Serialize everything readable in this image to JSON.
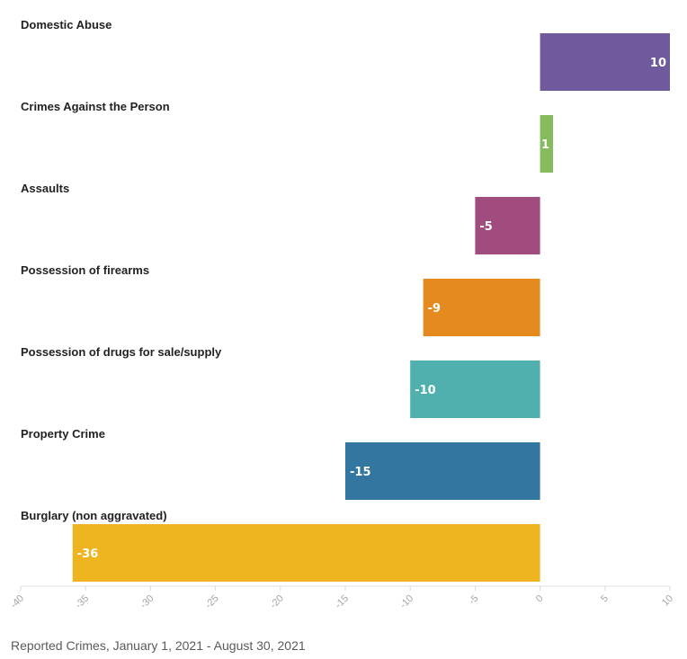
{
  "chart_data": {
    "type": "bar",
    "orientation": "horizontal",
    "categories": [
      "Domestic Abuse",
      "Crimes Against the Person",
      "Assaults",
      "Possession of firearms",
      "Possession of drugs for sale/supply",
      "Property Crime",
      "Burglary (non aggravated)"
    ],
    "values": [
      10,
      1,
      -5,
      -9,
      -10,
      -15,
      -36
    ],
    "data_labels": [
      "10",
      "1",
      "-5",
      "-9",
      "-10",
      "-15",
      "-36"
    ],
    "colors": [
      "#6f5a9e",
      "#86bc5e",
      "#a14c7e",
      "#e58a1f",
      "#4fb0ae",
      "#33769f",
      "#efb521"
    ],
    "xlim": [
      -40,
      10
    ],
    "x_ticks": [
      -40,
      -35,
      -30,
      -25,
      -20,
      -15,
      -10,
      -5,
      0,
      5,
      10
    ],
    "x_tick_labels": [
      "-40",
      "-35",
      "-30",
      "-25",
      "-20",
      "-15",
      "-10",
      "-5",
      "0",
      "5",
      "10"
    ],
    "grid": false,
    "legend": "none"
  },
  "caption": "Reported Crimes, January 1, 2021 - August 30, 2021"
}
